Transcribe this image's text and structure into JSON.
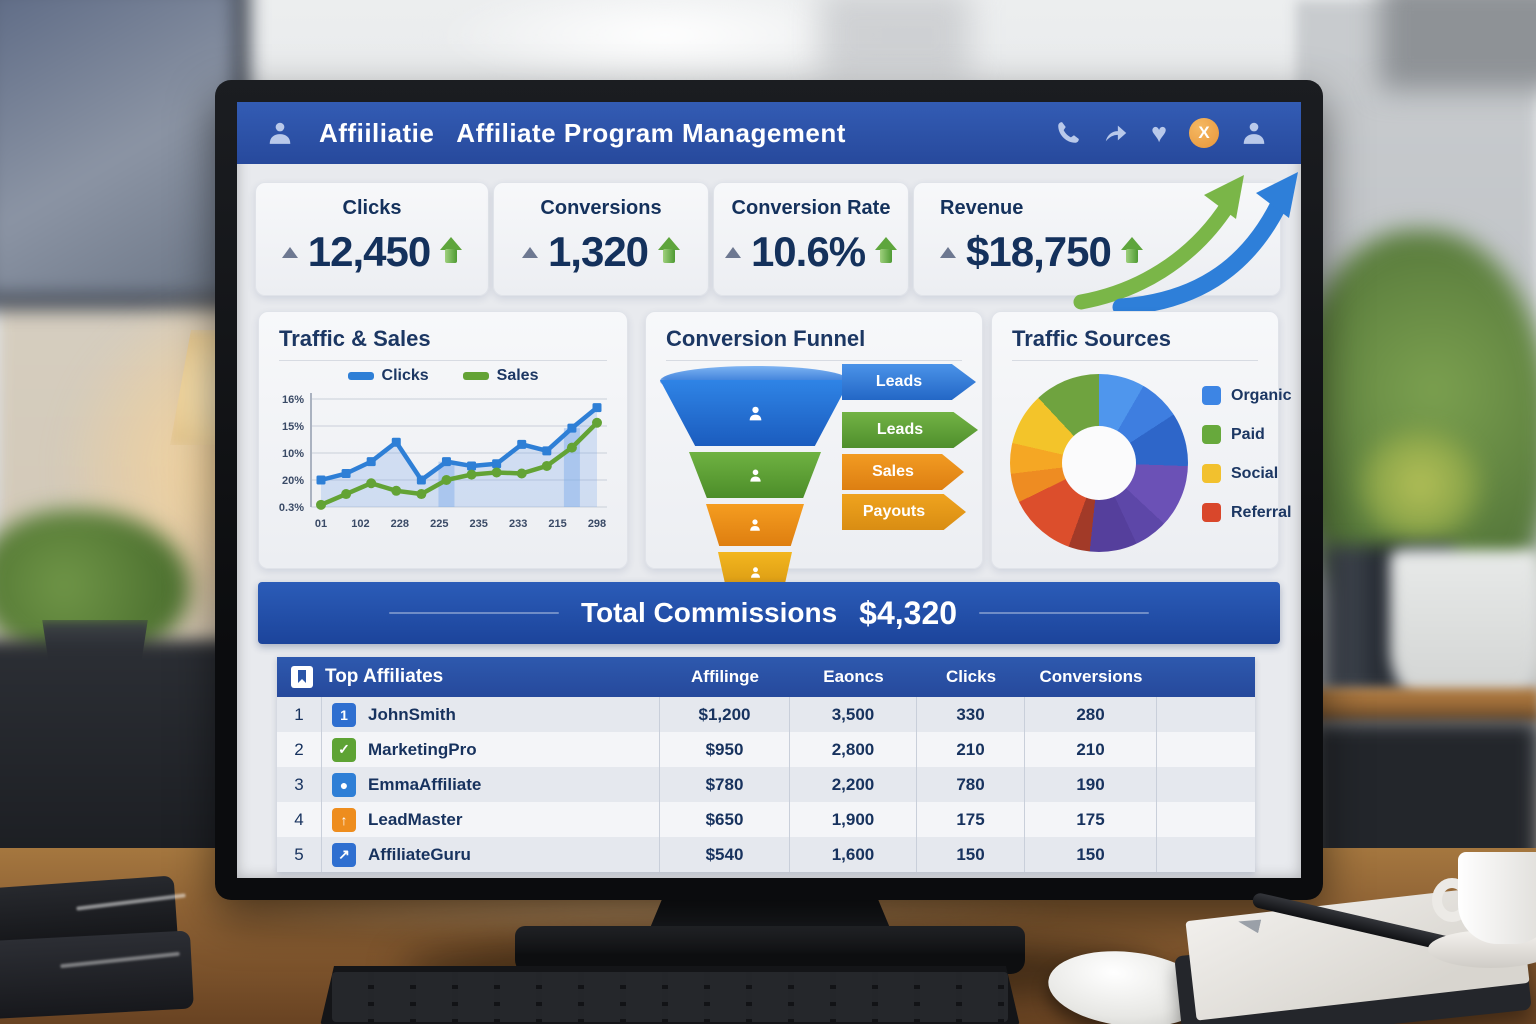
{
  "header": {
    "brand": "Affiiliatie",
    "title": "Affiliate Program Management",
    "close_glyph": "X",
    "icons": [
      "phone-icon",
      "share-icon",
      "heart-icon",
      "close-badge-icon",
      "user-icon"
    ]
  },
  "kpis": [
    {
      "label": "Clicks",
      "value": "12,450",
      "trend": "up"
    },
    {
      "label": "Conversions",
      "value": "1,320",
      "trend": "up"
    },
    {
      "label": "Conversion Rate",
      "value": "10.6%",
      "trend": "up"
    },
    {
      "label": "Revenue",
      "value": "$18,750",
      "trend": "up"
    }
  ],
  "panels": {
    "traffic_sales": {
      "title": "Traffic & Sales"
    },
    "funnel": {
      "title": "Conversion Funnel"
    },
    "sources": {
      "title": "Traffic Sources"
    }
  },
  "chart_data": [
    {
      "type": "line",
      "title": "Traffic & Sales",
      "legend_position": "top",
      "grid": true,
      "ylim": [
        0,
        100
      ],
      "y_tick_labels": [
        "16%",
        "15%",
        "10%",
        "20%",
        "0.3%"
      ],
      "x_tick_labels": [
        "01",
        "102",
        "228",
        "225",
        "235",
        "233",
        "215",
        "298"
      ],
      "legend": [
        {
          "name": "Clicks",
          "color": "#2e7fd6"
        },
        {
          "name": "Sales",
          "color": "#63a335"
        }
      ],
      "series": [
        {
          "name": "Clicks",
          "color": "#2e7fd6",
          "marker": "square",
          "values": [
            25,
            31,
            42,
            60,
            25,
            42,
            38,
            40,
            58,
            52,
            73,
            92
          ]
        },
        {
          "name": "Sales",
          "color": "#63a335",
          "marker": "circle",
          "values": [
            2,
            12,
            22,
            15,
            12,
            25,
            30,
            32,
            31,
            38,
            55,
            78
          ]
        }
      ],
      "highlight_bar_indexes": [
        5,
        10
      ]
    },
    {
      "type": "funnel",
      "title": "Conversion Funnel",
      "stages": [
        {
          "label": "Leads",
          "color": "#1f72d8"
        },
        {
          "label": "Leads",
          "color": "#67a93c"
        },
        {
          "label": "Sales",
          "color": "#ee8d1e"
        },
        {
          "label": "Payouts",
          "color": "#e8a11c"
        }
      ]
    },
    {
      "type": "pie",
      "donut": true,
      "title": "Traffic Sources",
      "legend_position": "right",
      "legend": [
        {
          "label": "Organic",
          "color": "#3d85e4"
        },
        {
          "label": "Paid",
          "color": "#67a93c"
        },
        {
          "label": "Social",
          "color": "#f2c12e"
        },
        {
          "label": "Referral",
          "color": "#d9472b"
        }
      ],
      "segments": [
        {
          "color": "#4f96ed",
          "start_deg": 0,
          "end_deg": 30
        },
        {
          "color": "#3e7ee0",
          "start_deg": 30,
          "end_deg": 57
        },
        {
          "color": "#2e66c9",
          "start_deg": 57,
          "end_deg": 92
        },
        {
          "color": "#6b51b6",
          "start_deg": 92,
          "end_deg": 133
        },
        {
          "color": "#5d47a8",
          "start_deg": 133,
          "end_deg": 155
        },
        {
          "color": "#553f9c",
          "start_deg": 155,
          "end_deg": 186
        },
        {
          "color": "#a23a28",
          "start_deg": 186,
          "end_deg": 200
        },
        {
          "color": "#dc4e2c",
          "start_deg": 200,
          "end_deg": 244
        },
        {
          "color": "#ee8c22",
          "start_deg": 244,
          "end_deg": 263
        },
        {
          "color": "#f5a724",
          "start_deg": 263,
          "end_deg": 283
        },
        {
          "color": "#f3c42a",
          "start_deg": 283,
          "end_deg": 317
        },
        {
          "color": "#6fa33f",
          "start_deg": 317,
          "end_deg": 360
        }
      ]
    }
  ],
  "commissions": {
    "label": "Total Commissions",
    "value": "$4,320"
  },
  "table": {
    "title": "Top Affiliates",
    "columns": [
      "Affilinge",
      "Eaoncs",
      "Clicks",
      "Conversions"
    ],
    "rows": [
      {
        "rank": "1",
        "name": "JohnSmith",
        "icon_glyph": "1",
        "icon_color": "#2f6fd0",
        "earnings": "$1,200",
        "eaoncs": "3,500",
        "clicks": "330",
        "conversions": "280"
      },
      {
        "rank": "2",
        "name": "MarketingPro",
        "icon_glyph": "✓",
        "icon_color": "#5ea334",
        "earnings": "$950",
        "eaoncs": "2,800",
        "clicks": "210",
        "conversions": "210"
      },
      {
        "rank": "3",
        "name": "EmmaAffiliate",
        "icon_glyph": "●",
        "icon_color": "#2f7fd6",
        "earnings": "$780",
        "eaoncs": "2,200",
        "clicks": "780",
        "conversions": "190"
      },
      {
        "rank": "4",
        "name": "LeadMaster",
        "icon_glyph": "↑",
        "icon_color": "#ee8d1e",
        "earnings": "$650",
        "eaoncs": "1,900",
        "clicks": "175",
        "conversions": "175"
      },
      {
        "rank": "5",
        "name": "AffiliateGuru",
        "icon_glyph": "↗",
        "icon_color": "#2f6fd0",
        "earnings": "$540",
        "eaoncs": "1,600",
        "clicks": "150",
        "conversions": "150"
      }
    ]
  },
  "colors": {
    "header_blue": "#2c53a7",
    "banner_blue": "#2353ad",
    "table_header_blue": "#2a55a8",
    "navy_text": "#16335f",
    "kpi_up_green": "#5ba43a",
    "panel_bg": "#f5f6f8",
    "desk_wood": "#8d6134"
  }
}
